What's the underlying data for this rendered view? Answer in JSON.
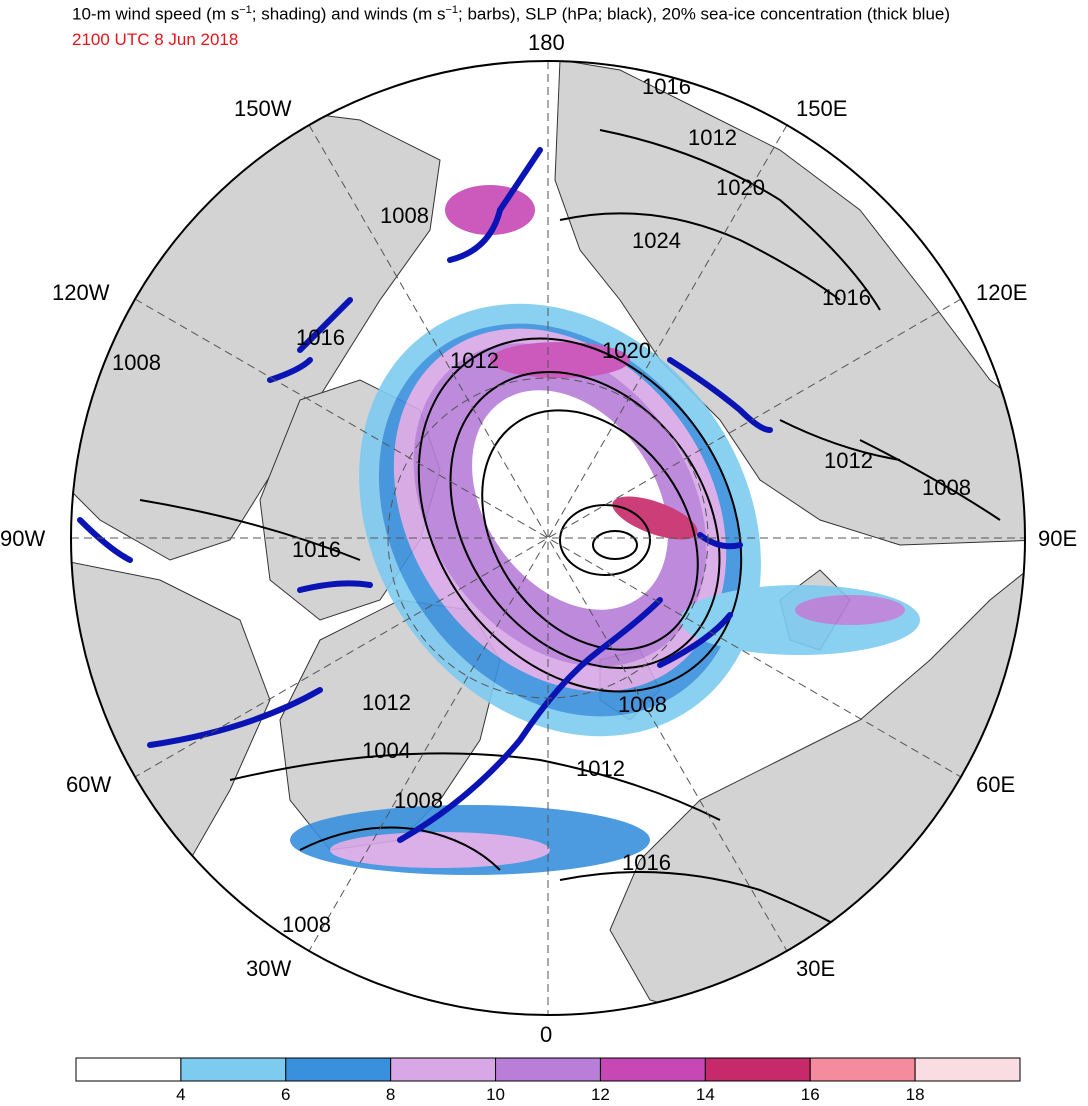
{
  "header": {
    "title_parts": {
      "p1": "10-m wind speed (m s",
      "sup1": "−1",
      "p2": "; shading) and winds (m s",
      "sup2": "−1",
      "p3": "; barbs), SLP (hPa; black), 20% sea-ice concentration (thick blue)"
    },
    "valid_time": "2100 UTC 8 Jun 2018",
    "valid_time_color": "#e8141c"
  },
  "longitude_labels": {
    "top": "180",
    "lon_150w": "150W",
    "lon_150e": "150E",
    "lon_120w": "120W",
    "lon_120e": "120E",
    "lon_90w": "90W",
    "lon_90e": "90E",
    "lon_60w": "60W",
    "lon_60e": "60E",
    "lon_30w": "30W",
    "lon_30e": "30E",
    "bottom": "0"
  },
  "isobar_labels": [
    {
      "text": "1016"
    },
    {
      "text": "1012"
    },
    {
      "text": "1020"
    },
    {
      "text": "1008"
    },
    {
      "text": "1024"
    },
    {
      "text": "1016"
    },
    {
      "text": "1016"
    },
    {
      "text": "1008"
    },
    {
      "text": "1012"
    },
    {
      "text": "1020"
    },
    {
      "text": "1012"
    },
    {
      "text": "1008"
    },
    {
      "text": "1016"
    },
    {
      "text": "1012"
    },
    {
      "text": "1008"
    },
    {
      "text": "1004"
    },
    {
      "text": "1012"
    },
    {
      "text": "1008"
    },
    {
      "text": "1016"
    },
    {
      "text": "1008"
    }
  ],
  "colorbar": {
    "colors": [
      "#ffffff",
      "#7ecbf0",
      "#3990dc",
      "#d8a8e6",
      "#b87ed8",
      "#c748b5",
      "#c72a6a",
      "#f48c9e",
      "#fadde2"
    ],
    "labels": [
      "4",
      "6",
      "8",
      "10",
      "12",
      "14",
      "16",
      "18"
    ]
  },
  "legend_colors": {
    "land": "#d3d3d3",
    "sea_ice_edge": "#0a14b4",
    "isobar": "#000000"
  }
}
